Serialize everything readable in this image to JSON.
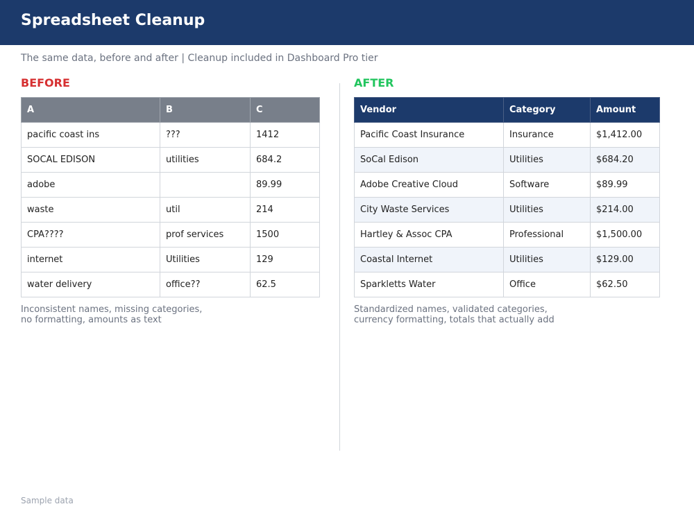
{
  "header": {
    "title": "Spreadsheet Cleanup"
  },
  "subtitle": "The same data, before and after  |  Cleanup included in Dashboard Pro tier",
  "before": {
    "label": "BEFORE",
    "columns": [
      "A",
      "B",
      "C"
    ],
    "rows": [
      [
        "pacific coast ins",
        "???",
        "1412"
      ],
      [
        "SOCAL EDISON",
        "utilities",
        "684.2"
      ],
      [
        "adobe",
        "",
        "89.99"
      ],
      [
        "waste",
        "util",
        "214"
      ],
      [
        "CPA????",
        "prof services",
        "1500"
      ],
      [
        "internet",
        "Utilities",
        "129"
      ],
      [
        "water delivery",
        "office??",
        "62.5"
      ]
    ],
    "caption_line1": "Inconsistent names, missing categories,",
    "caption_line2": "no formatting, amounts as text"
  },
  "after": {
    "label": "AFTER",
    "columns": [
      "Vendor",
      "Category",
      "Amount"
    ],
    "rows": [
      [
        "Pacific Coast Insurance",
        "Insurance",
        "$1,412.00"
      ],
      [
        "SoCal Edison",
        "Utilities",
        "$684.20"
      ],
      [
        "Adobe Creative Cloud",
        "Software",
        "$89.99"
      ],
      [
        "City Waste Services",
        "Utilities",
        "$214.00"
      ],
      [
        "Hartley & Assoc CPA",
        "Professional",
        "$1,500.00"
      ],
      [
        "Coastal Internet",
        "Utilities",
        "$129.00"
      ],
      [
        "Sparkletts Water",
        "Office",
        "$62.50"
      ]
    ],
    "caption_line1": "Standardized names, validated categories,",
    "caption_line2": "currency formatting, totals that actually add"
  },
  "footer_note": "Sample data",
  "colors": {
    "header_bg": "#1c3a6b",
    "before_accent": "#d63031",
    "after_accent": "#22c55e",
    "before_header_bg": "#787f8a",
    "after_stripe": "#f0f4fa"
  }
}
